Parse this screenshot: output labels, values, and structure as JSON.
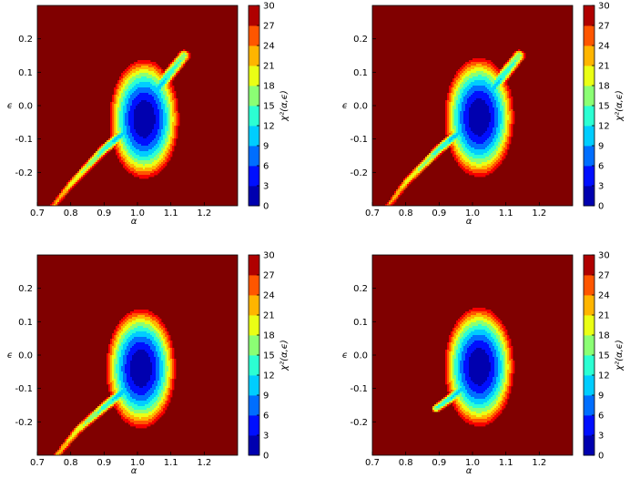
{
  "figure": {
    "layout": "2x2 grid of chi-squared contour maps"
  },
  "chart_data": [
    {
      "type": "heatmap",
      "panel": "top-left",
      "xlabel": "α",
      "ylabel": "ϵ",
      "xlim": [
        0.7,
        1.3
      ],
      "ylim": [
        -0.3,
        0.3
      ],
      "xticks": [
        "0.7",
        "0.8",
        "0.9",
        "1.0",
        "1.1",
        "1.2"
      ],
      "yticks": [
        "0.2",
        "0.1",
        "0.0",
        "-0.1",
        "-0.2"
      ],
      "colorbar": {
        "label": "χ²(α,ϵ)",
        "min": 0,
        "max": 30,
        "ticks": [
          "0",
          "3",
          "6",
          "9",
          "12",
          "15",
          "18",
          "21",
          "24",
          "27",
          "30"
        ],
        "colormap": "jet"
      },
      "minimum": {
        "alpha": 1.02,
        "epsilon": -0.04
      },
      "valley_path": [
        [
          0.74,
          -0.31
        ],
        [
          0.8,
          -0.235
        ],
        [
          0.9,
          -0.13
        ],
        [
          0.98,
          -0.065
        ],
        [
          1.02,
          -0.04
        ],
        [
          1.06,
          0.05
        ],
        [
          1.14,
          0.15
        ]
      ]
    },
    {
      "type": "heatmap",
      "panel": "top-right",
      "xlabel": "α",
      "ylabel": "ϵ",
      "xlim": [
        0.7,
        1.3
      ],
      "ylim": [
        -0.3,
        0.3
      ],
      "xticks": [
        "0.7",
        "0.8",
        "0.9",
        "1.0",
        "1.1",
        "1.2"
      ],
      "yticks": [
        "0.2",
        "0.1",
        "0.0",
        "-0.1",
        "-0.2"
      ],
      "colorbar": {
        "label": "χ²(α,ϵ)",
        "min": 0,
        "max": 30,
        "ticks": [
          "0",
          "3",
          "6",
          "9",
          "12",
          "15",
          "18",
          "21",
          "24",
          "27",
          "30"
        ],
        "colormap": "jet"
      },
      "minimum": {
        "alpha": 1.02,
        "epsilon": -0.035
      },
      "valley_path": [
        [
          0.74,
          -0.31
        ],
        [
          0.8,
          -0.23
        ],
        [
          0.9,
          -0.13
        ],
        [
          0.98,
          -0.065
        ],
        [
          1.02,
          -0.035
        ],
        [
          1.06,
          0.05
        ],
        [
          1.14,
          0.15
        ]
      ]
    },
    {
      "type": "heatmap",
      "panel": "bottom-left",
      "xlabel": "α",
      "ylabel": "ϵ",
      "xlim": [
        0.7,
        1.3
      ],
      "ylim": [
        -0.3,
        0.3
      ],
      "xticks": [
        "0.7",
        "0.8",
        "0.9",
        "1.0",
        "1.1",
        "1.2"
      ],
      "yticks": [
        "0.2",
        "0.1",
        "0.0",
        "-0.1",
        "-0.2"
      ],
      "colorbar": {
        "label": "χ²(α,ϵ)",
        "min": 0,
        "max": 30,
        "ticks": [
          "0",
          "3",
          "6",
          "9",
          "12",
          "15",
          "18",
          "21",
          "24",
          "27",
          "30"
        ],
        "colormap": "jet"
      },
      "minimum": {
        "alpha": 1.01,
        "epsilon": -0.04
      },
      "valley_path": [
        [
          0.75,
          -0.31
        ],
        [
          0.82,
          -0.225
        ],
        [
          0.9,
          -0.155
        ],
        [
          0.97,
          -0.1
        ],
        [
          1.01,
          -0.04
        ],
        [
          1.03,
          0.02
        ]
      ]
    },
    {
      "type": "heatmap",
      "panel": "bottom-right",
      "xlabel": "α",
      "ylabel": "ϵ",
      "xlim": [
        0.7,
        1.3
      ],
      "ylim": [
        -0.3,
        0.3
      ],
      "xticks": [
        "0.7",
        "0.8",
        "0.9",
        "1.0",
        "1.1",
        "1.2"
      ],
      "yticks": [
        "0.2",
        "0.1",
        "0.0",
        "-0.1",
        "-0.2"
      ],
      "colorbar": {
        "label": "χ²(α,ϵ)",
        "min": 0,
        "max": 30,
        "ticks": [
          "0",
          "3",
          "6",
          "9",
          "12",
          "15",
          "18",
          "21",
          "24",
          "27",
          "30"
        ],
        "colormap": "jet"
      },
      "minimum": {
        "alpha": 1.02,
        "epsilon": -0.035
      },
      "valley_path": [
        [
          0.89,
          -0.16
        ],
        [
          0.94,
          -0.125
        ],
        [
          0.98,
          -0.09
        ],
        [
          1.02,
          -0.035
        ],
        [
          1.04,
          0.02
        ]
      ]
    }
  ]
}
